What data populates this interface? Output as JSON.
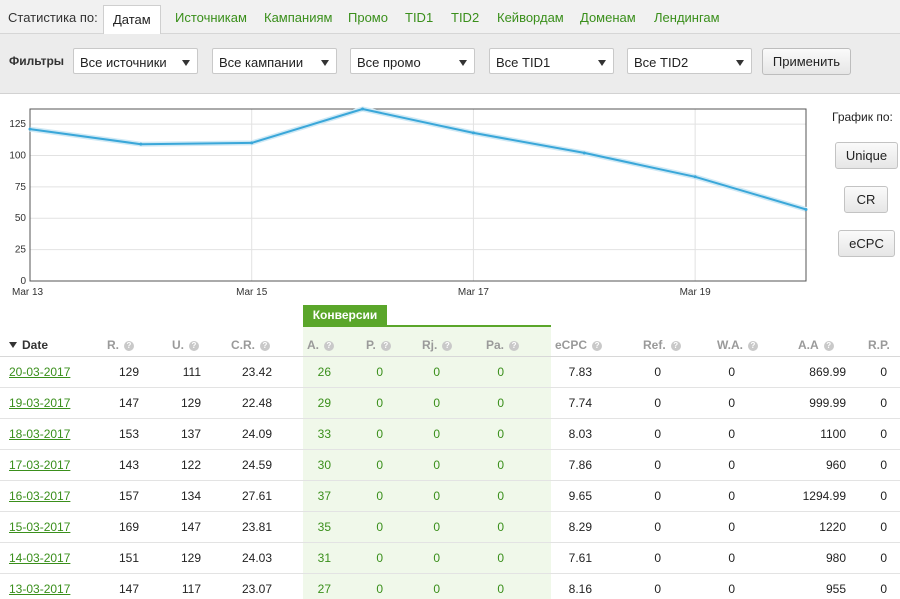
{
  "tabs": {
    "label": "Статистика по:",
    "items": [
      {
        "label": "Датам",
        "active": true
      },
      {
        "label": "Источникам"
      },
      {
        "label": "Кампаниям"
      },
      {
        "label": "Промо"
      },
      {
        "label": "TID1"
      },
      {
        "label": "TID2"
      },
      {
        "label": "Кейвордам"
      },
      {
        "label": "Доменам"
      },
      {
        "label": "Лендингам"
      }
    ]
  },
  "filters": {
    "label": "Фильтры",
    "selects": [
      {
        "value": "Все источники"
      },
      {
        "value": "Все кампании"
      },
      {
        "value": "Все промо"
      },
      {
        "value": "Все TID1"
      },
      {
        "value": "Все TID2"
      }
    ],
    "apply_label": "Применить"
  },
  "chart_side": {
    "label": "График по:",
    "buttons": [
      "Unique",
      "CR",
      "eCPC"
    ]
  },
  "chart_data": {
    "type": "line",
    "x": [
      "13-03-2017",
      "14-03-2017",
      "15-03-2017",
      "16-03-2017",
      "17-03-2017",
      "18-03-2017",
      "19-03-2017",
      "20-03-2017"
    ],
    "x_tick_labels": [
      "Mar 13",
      "Mar 15",
      "Mar 17",
      "Mar 19"
    ],
    "x_tick_dates": [
      "13-03-2017",
      "15-03-2017",
      "17-03-2017",
      "19-03-2017"
    ],
    "series": [
      {
        "values": [
          121,
          109,
          110,
          137,
          118,
          102,
          83,
          57
        ],
        "color": "#3aa7d9"
      }
    ],
    "yticks": [
      0,
      25,
      50,
      75,
      100,
      125
    ],
    "ylim": [
      0,
      137
    ],
    "grid": true,
    "title": "",
    "xlabel": "",
    "ylabel": ""
  },
  "table": {
    "group_header": "Конверсии",
    "columns": [
      "Date",
      "R.",
      "U.",
      "C.R.",
      "A.",
      "P.",
      "Rj.",
      "Pa.",
      "eCPC",
      "Ref.",
      "W.A.",
      "A.A",
      "R.P."
    ],
    "rows": [
      [
        "20-03-2017",
        "129",
        "111",
        "23.42",
        "26",
        "0",
        "0",
        "0",
        "7.83",
        "0",
        "0",
        "869.99",
        "0"
      ],
      [
        "19-03-2017",
        "147",
        "129",
        "22.48",
        "29",
        "0",
        "0",
        "0",
        "7.74",
        "0",
        "0",
        "999.99",
        "0"
      ],
      [
        "18-03-2017",
        "153",
        "137",
        "24.09",
        "33",
        "0",
        "0",
        "0",
        "8.03",
        "0",
        "0",
        "1100",
        "0"
      ],
      [
        "17-03-2017",
        "143",
        "122",
        "24.59",
        "30",
        "0",
        "0",
        "0",
        "7.86",
        "0",
        "0",
        "960",
        "0"
      ],
      [
        "16-03-2017",
        "157",
        "134",
        "27.61",
        "37",
        "0",
        "0",
        "0",
        "9.65",
        "0",
        "0",
        "1294.99",
        "0"
      ],
      [
        "15-03-2017",
        "169",
        "147",
        "23.81",
        "35",
        "0",
        "0",
        "0",
        "8.29",
        "0",
        "0",
        "1220",
        "0"
      ],
      [
        "14-03-2017",
        "151",
        "129",
        "24.03",
        "31",
        "0",
        "0",
        "0",
        "7.61",
        "0",
        "0",
        "980",
        "0"
      ],
      [
        "13-03-2017",
        "147",
        "117",
        "23.07",
        "27",
        "0",
        "0",
        "0",
        "8.16",
        "0",
        "0",
        "955",
        "0"
      ]
    ]
  }
}
